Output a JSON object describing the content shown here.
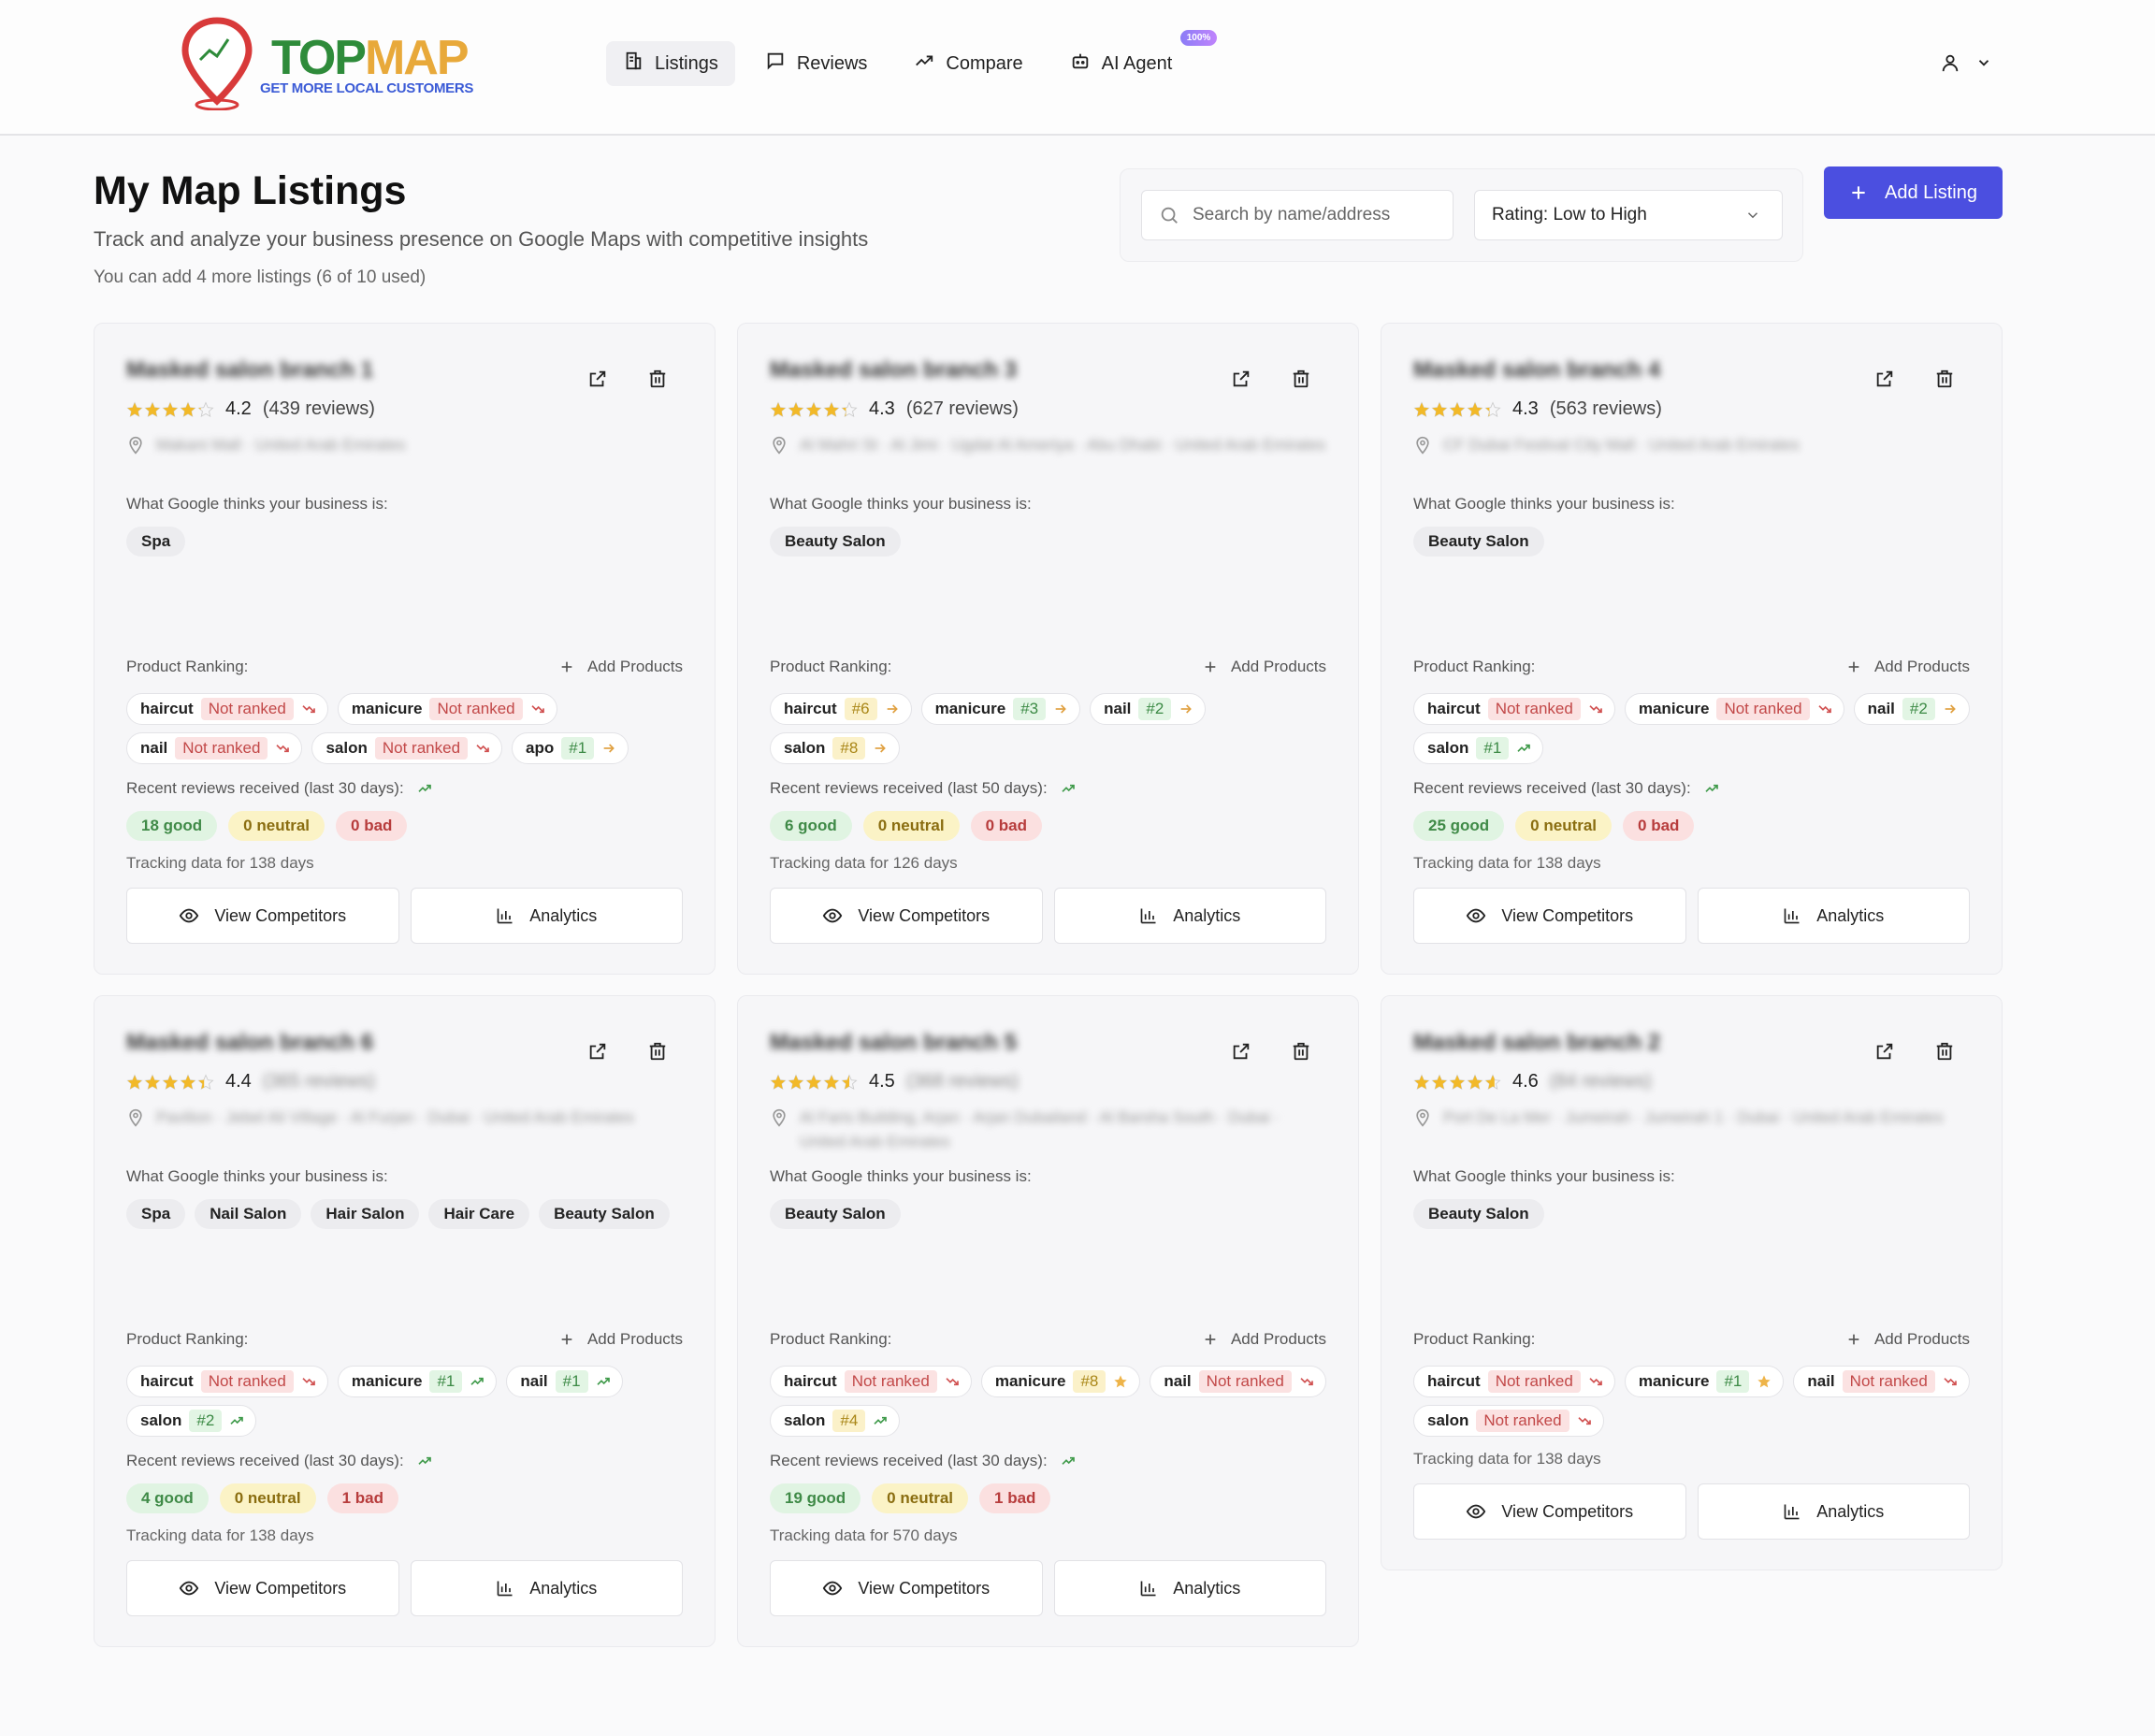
{
  "app": {
    "logo_main_1": "TOP",
    "logo_main_2": "MAP",
    "logo_tagline": "GET MORE LOCAL CUSTOMERS"
  },
  "nav": [
    {
      "label": "Listings",
      "icon": "building-icon",
      "active": true
    },
    {
      "label": "Reviews",
      "icon": "message-square-icon"
    },
    {
      "label": "Compare",
      "icon": "trending-up-icon"
    },
    {
      "label": "AI Agent",
      "icon": "bot-icon",
      "badge": "100%"
    }
  ],
  "page": {
    "title": "My Map Listings",
    "subtitle": "Track and analyze your business presence on Google Maps with competitive insights",
    "count_text": "You can add 4 more listings (6 of 10 used)"
  },
  "search": {
    "placeholder": "Search by name/address"
  },
  "sort": {
    "selected": "Rating: Low to High"
  },
  "add_listing_label": "Add Listing",
  "labels": {
    "google_thinks": "What Google thinks your business is:",
    "product_ranking": "Product Ranking:",
    "add_products": "Add Products",
    "view_competitors": "View Competitors",
    "analytics": "Analytics"
  },
  "colors": {
    "accent": "#4b4fe0",
    "star": "#f2b928",
    "good": "#3f8a47",
    "bad": "#b73c3c",
    "neutral": "#8a6d10"
  },
  "cards": [
    {
      "name": "Masked salon branch 1",
      "rating": "4.2",
      "reviews": "(439 reviews)",
      "reviews_blurred": false,
      "address": "Makani Mall · United Arab Emirates",
      "categories": [
        "Spa"
      ],
      "tags": [
        {
          "kw": "haircut",
          "rank": "Not ranked",
          "style": "red",
          "trend": "down"
        },
        {
          "kw": "manicure",
          "rank": "Not ranked",
          "style": "red",
          "trend": "down"
        },
        {
          "kw": "nail",
          "rank": "Not ranked",
          "style": "red",
          "trend": "down"
        },
        {
          "kw": "salon",
          "rank": "Not ranked",
          "style": "red",
          "trend": "down"
        },
        {
          "kw": "apo",
          "rank": "#1",
          "style": "green",
          "trend": "right"
        }
      ],
      "reviews_label": "Recent reviews received (last 30 days):",
      "good": "18 good",
      "neutral": "0 neutral",
      "bad": "0 bad",
      "tracking": "Tracking data for 138 days"
    },
    {
      "name": "Masked salon branch 3",
      "rating": "4.3",
      "reviews": "(627 reviews)",
      "reviews_blurred": false,
      "address": "Al Mahri St · Al Jimi · Ugdat Al Ameriya · Abu Dhabi · United Arab Emirates",
      "categories": [
        "Beauty Salon"
      ],
      "tags": [
        {
          "kw": "haircut",
          "rank": "#6",
          "style": "yellow",
          "trend": "right"
        },
        {
          "kw": "manicure",
          "rank": "#3",
          "style": "green",
          "trend": "right"
        },
        {
          "kw": "nail",
          "rank": "#2",
          "style": "green",
          "trend": "right"
        },
        {
          "kw": "salon",
          "rank": "#8",
          "style": "yellow",
          "trend": "right"
        }
      ],
      "reviews_label": "Recent reviews received (last 50 days):",
      "good": "6 good",
      "neutral": "0 neutral",
      "bad": "0 bad",
      "tracking": "Tracking data for 126 days"
    },
    {
      "name": "Masked salon branch 4",
      "rating": "4.3",
      "reviews": "(563 reviews)",
      "reviews_blurred": false,
      "address": "CF Dubai Festival City Mall · United Arab Emirates",
      "categories": [
        "Beauty Salon"
      ],
      "tags": [
        {
          "kw": "haircut",
          "rank": "Not ranked",
          "style": "red",
          "trend": "down"
        },
        {
          "kw": "manicure",
          "rank": "Not ranked",
          "style": "red",
          "trend": "down"
        },
        {
          "kw": "nail",
          "rank": "#2",
          "style": "green",
          "trend": "right"
        },
        {
          "kw": "salon",
          "rank": "#1",
          "style": "green",
          "trend": "up"
        }
      ],
      "reviews_label": "Recent reviews received (last 30 days):",
      "good": "25 good",
      "neutral": "0 neutral",
      "bad": "0 bad",
      "tracking": "Tracking data for 138 days"
    },
    {
      "name": "Masked salon branch 6",
      "rating": "4.4",
      "reviews": "(365 reviews)",
      "reviews_blurred": true,
      "address": "Pavilion · Jebel Ali Village · Al Furjan · Dubai · United Arab Emirates",
      "categories": [
        "Spa",
        "Nail Salon",
        "Hair Salon",
        "Hair Care",
        "Beauty Salon"
      ],
      "tags": [
        {
          "kw": "haircut",
          "rank": "Not ranked",
          "style": "red",
          "trend": "down"
        },
        {
          "kw": "manicure",
          "rank": "#1",
          "style": "green",
          "trend": "up"
        },
        {
          "kw": "nail",
          "rank": "#1",
          "style": "green",
          "trend": "up"
        },
        {
          "kw": "salon",
          "rank": "#2",
          "style": "green",
          "trend": "up"
        }
      ],
      "reviews_label": "Recent reviews received (last 30 days):",
      "good": "4 good",
      "neutral": "0 neutral",
      "bad": "1 bad",
      "tracking": "Tracking data for 138 days"
    },
    {
      "name": "Masked salon branch 5",
      "rating": "4.5",
      "reviews": "(368 reviews)",
      "reviews_blurred": true,
      "address": "Al Faris Building, Arjan · Arjan Dubailand · Al Barsha South · Dubai · United Arab Emirates",
      "categories": [
        "Beauty Salon"
      ],
      "tags": [
        {
          "kw": "haircut",
          "rank": "Not ranked",
          "style": "red",
          "trend": "down"
        },
        {
          "kw": "manicure",
          "rank": "#8",
          "style": "yellow",
          "trend": "star"
        },
        {
          "kw": "nail",
          "rank": "Not ranked",
          "style": "red",
          "trend": "down"
        },
        {
          "kw": "salon",
          "rank": "#4",
          "style": "yellow",
          "trend": "up"
        }
      ],
      "reviews_label": "Recent reviews received (last 30 days):",
      "good": "19 good",
      "neutral": "0 neutral",
      "bad": "1 bad",
      "tracking": "Tracking data for 570 days"
    },
    {
      "name": "Masked salon branch 2",
      "rating": "4.6",
      "reviews": "(84 reviews)",
      "reviews_blurred": true,
      "address": "Port De La Mer · Jumeirah · Jumeirah 1 · Dubai · United Arab Emirates",
      "categories": [
        "Beauty Salon"
      ],
      "tags": [
        {
          "kw": "haircut",
          "rank": "Not ranked",
          "style": "red",
          "trend": "down"
        },
        {
          "kw": "manicure",
          "rank": "#1",
          "style": "green",
          "trend": "star"
        },
        {
          "kw": "nail",
          "rank": "Not ranked",
          "style": "red",
          "trend": "down"
        },
        {
          "kw": "salon",
          "rank": "Not ranked",
          "style": "red",
          "trend": "down"
        }
      ],
      "tracking": "Tracking data for 138 days"
    }
  ]
}
